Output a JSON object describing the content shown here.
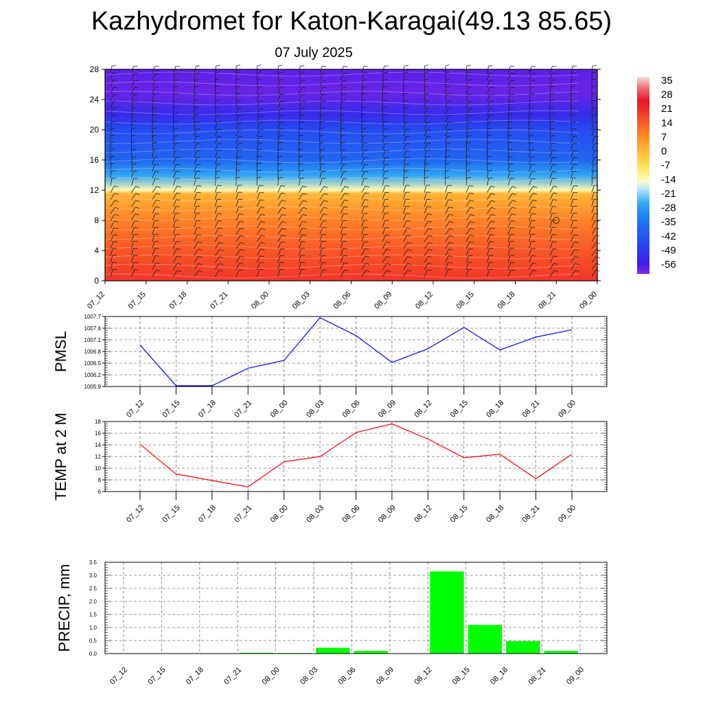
{
  "title": "Kazhydromet for Katon-Karagai(49.13 85.65)",
  "subtitle": "07 July 2025",
  "time_labels": [
    "07_12",
    "07_15",
    "07_18",
    "07_21",
    "08_00",
    "08_03",
    "08_06",
    "08_09",
    "08_12",
    "08_15",
    "08_18",
    "08_21",
    "09_00"
  ],
  "chart_data": [
    {
      "type": "heatmap",
      "name": "temperature-wind-cross-section",
      "y_ticks": [
        0,
        4,
        8,
        12,
        16,
        20,
        24,
        28
      ],
      "ylim": [
        0,
        28
      ],
      "colorbar": {
        "labels": [
          "35",
          "28",
          "21",
          "14",
          "7",
          "0",
          "-7",
          "-14",
          "-21",
          "-28",
          "-35",
          "-42",
          "-49",
          "-56"
        ],
        "range": [
          -60,
          38
        ]
      },
      "temperature_profile": [
        {
          "level": 0,
          "value": 21
        },
        {
          "level": 4,
          "value": 16
        },
        {
          "level": 8,
          "value": 10
        },
        {
          "level": 11.5,
          "value": 2
        },
        {
          "level": 12,
          "value": -12
        },
        {
          "level": 14,
          "value": -26
        },
        {
          "level": 16,
          "value": -38
        },
        {
          "level": 20,
          "value": -44
        },
        {
          "level": 22,
          "value": -52
        },
        {
          "level": 25,
          "value": -58
        },
        {
          "level": 28,
          "value": -57
        }
      ],
      "wind_barbs": "present"
    },
    {
      "type": "line",
      "ylabel": "PMSL",
      "y_ticks": [
        "1005.9",
        "1006.2",
        "1006.5",
        "1006.8",
        "1007.1",
        "1007.4",
        "1007.7"
      ],
      "ylim": [
        1005.9,
        1007.7
      ],
      "values": [
        1006.97,
        1005.92,
        1005.92,
        1006.37,
        1006.57,
        1007.67,
        1007.21,
        1006.52,
        1006.87,
        1007.42,
        1006.84,
        1007.17,
        1007.36
      ],
      "color": "#0000ff"
    },
    {
      "type": "line",
      "ylabel": "TEMP at 2 M",
      "y_ticks": [
        "6",
        "8",
        "10",
        "12",
        "14",
        "16",
        "18"
      ],
      "ylim": [
        6,
        18
      ],
      "values": [
        14.1,
        9.0,
        7.9,
        6.8,
        11.1,
        12.0,
        16.1,
        17.6,
        15.0,
        11.8,
        12.4,
        8.2,
        12.4
      ],
      "color": "#ff0000"
    },
    {
      "type": "bar",
      "ylabel": "PRECIP, mm",
      "y_ticks": [
        "0.0",
        "0.5",
        "1.0",
        "1.5",
        "2.0",
        "2.5",
        "3.0",
        "3.5"
      ],
      "ylim": [
        0,
        3.5
      ],
      "values": [
        0,
        0,
        0,
        0.03,
        0.02,
        0.22,
        0.1,
        0,
        3.15,
        1.1,
        0.48,
        0.1
      ],
      "color": "#00ff00"
    }
  ]
}
